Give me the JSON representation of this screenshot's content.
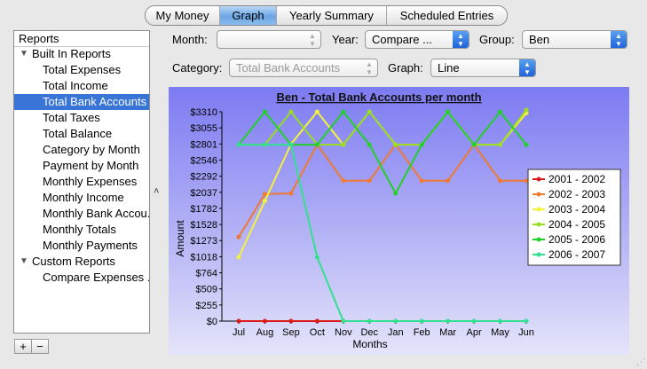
{
  "tabs": [
    {
      "label": "My Money",
      "active": false
    },
    {
      "label": "Graph",
      "active": true
    },
    {
      "label": "Yearly Summary",
      "active": false
    },
    {
      "label": "Scheduled Entries",
      "active": false
    }
  ],
  "sidebar": {
    "header": "Reports",
    "built_in": "Built In Reports",
    "items": [
      "Total Expenses",
      "Total Income",
      "Total Bank Accounts",
      "Total Taxes",
      "Total Balance",
      "Category by Month",
      "Payment by Month",
      "Monthly Expenses",
      "Monthly Income",
      "Monthly Bank Accou...",
      "Monthly Totals",
      "Monthly Payments"
    ],
    "selected": "Total Bank Accounts",
    "custom": "Custom Reports",
    "custom_items": [
      "Compare Expenses ..."
    ],
    "add_label": "+",
    "remove_label": "−",
    "collapse_glyph": "˄"
  },
  "controls": {
    "month_label": "Month:",
    "month_value": "",
    "year_label": "Year:",
    "year_value": "Compare ...",
    "group_label": "Group:",
    "group_value": "Ben",
    "category_label": "Category:",
    "category_value": "Total Bank Accounts",
    "graph_label": "Graph:",
    "graph_value": "Line"
  },
  "chart_data": {
    "type": "line",
    "title": "Ben - Total Bank Accounts per month",
    "xlabel": "Months",
    "ylabel": "Amount",
    "categories": [
      "Jul",
      "Aug",
      "Sep",
      "Oct",
      "Nov",
      "Dec",
      "Jan",
      "Feb",
      "Mar",
      "Apr",
      "May",
      "Jun"
    ],
    "yticks": [
      "$0",
      "$255",
      "$509",
      "$764",
      "$1018",
      "$1273",
      "$1528",
      "$1782",
      "$2037",
      "$2292",
      "$2546",
      "$2801",
      "$3055",
      "$3310"
    ],
    "ylim": [
      0,
      3310
    ],
    "legend_position": "right",
    "series": [
      {
        "name": "2001 - 2002",
        "color": "#dd1a1a",
        "values": [
          0,
          0,
          0,
          0,
          0,
          null,
          null,
          null,
          null,
          null,
          null,
          null
        ]
      },
      {
        "name": "2002 - 2003",
        "color": "#ee7a33",
        "values": [
          1330,
          2010,
          2020,
          2790,
          2220,
          2220,
          2790,
          2220,
          2220,
          2790,
          2220,
          2220
        ]
      },
      {
        "name": "2003 - 2004",
        "color": "#f4f23a",
        "values": [
          1010,
          1900,
          2800,
          3310,
          2790,
          3310,
          2790,
          2790,
          3310,
          2790,
          2790,
          3290
        ]
      },
      {
        "name": "2004 - 2005",
        "color": "#99dd22",
        "values": [
          2790,
          2790,
          3310,
          2790,
          2790,
          3310,
          2790,
          2790,
          3310,
          2790,
          2790,
          3340
        ]
      },
      {
        "name": "2005 - 2006",
        "color": "#22d02a",
        "values": [
          2790,
          3310,
          2790,
          2790,
          3310,
          2790,
          2020,
          2790,
          3310,
          2790,
          3310,
          2790
        ]
      },
      {
        "name": "2006 - 2007",
        "color": "#33e090",
        "values": [
          2790,
          2790,
          2790,
          1010,
          0,
          0,
          0,
          0,
          0,
          0,
          0,
          0
        ]
      }
    ]
  }
}
